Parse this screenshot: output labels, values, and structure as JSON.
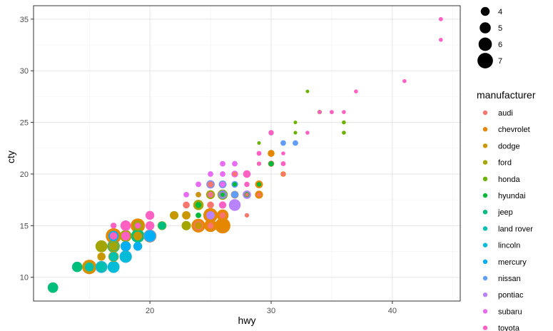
{
  "chart_data": {
    "type": "scatter",
    "title": "",
    "xlabel": "hwy",
    "ylabel": "cty",
    "xlim": [
      10.4,
      45.6
    ],
    "ylim": [
      7.7,
      36.3
    ],
    "x_ticks": [
      20,
      30,
      40
    ],
    "y_ticks": [
      10,
      15,
      20,
      25,
      30,
      35
    ],
    "grid": true,
    "size_legend": {
      "title": "",
      "placement": "right",
      "values": [
        4,
        5,
        6,
        7
      ]
    },
    "color_legend": {
      "title": "manufacturer",
      "placement": "right"
    },
    "series": [
      {
        "name": "audi",
        "color": "#F8766D",
        "points": [
          [
            29,
            18,
            1.8
          ],
          [
            29,
            21,
            2.0
          ],
          [
            31,
            20,
            2.0
          ],
          [
            30,
            21,
            2.8
          ],
          [
            26,
            16,
            2.8
          ],
          [
            26,
            18,
            3.1
          ],
          [
            25,
            18,
            1.8
          ],
          [
            28,
            18,
            1.8
          ],
          [
            28,
            16,
            2.0
          ],
          [
            27,
            20,
            2.0
          ],
          [
            25,
            19,
            2.8
          ],
          [
            25,
            15,
            2.8
          ],
          [
            25,
            17,
            3.1
          ],
          [
            23,
            17,
            3.1
          ],
          [
            24,
            15,
            4.2
          ]
        ]
      },
      {
        "name": "chevrolet",
        "color": "#E58700",
        "points": [
          [
            26,
            16,
            5.3
          ],
          [
            25,
            15,
            5.7
          ],
          [
            24,
            15,
            6.2
          ],
          [
            25,
            16,
            6.5
          ],
          [
            26,
            15,
            7.0
          ],
          [
            31,
            20,
            2.4
          ],
          [
            30,
            22,
            3.1
          ],
          [
            25,
            15,
            5.7
          ],
          [
            24,
            15,
            6.0
          ],
          [
            29,
            19,
            3.5
          ],
          [
            27,
            18,
            3.5
          ],
          [
            29,
            18,
            3.6
          ],
          [
            17,
            14,
            7.0
          ],
          [
            19,
            15,
            6.5
          ],
          [
            20,
            14,
            5.7
          ],
          [
            15,
            11,
            6.5
          ]
        ]
      },
      {
        "name": "dodge",
        "color": "#C99800",
        "points": [
          [
            24,
            18,
            2.4
          ],
          [
            24,
            17,
            3.0
          ],
          [
            22,
            16,
            3.3
          ],
          [
            22,
            16,
            3.8
          ],
          [
            24,
            15,
            3.3
          ],
          [
            23,
            16,
            3.8
          ],
          [
            19,
            14,
            3.8
          ],
          [
            17,
            13,
            4.7
          ],
          [
            12,
            9,
            4.7
          ],
          [
            17,
            13,
            5.2
          ],
          [
            15,
            11,
            5.7
          ],
          [
            16,
            12,
            3.7
          ],
          [
            19,
            14,
            3.7
          ],
          [
            18,
            13,
            4.7
          ],
          [
            17,
            12,
            4.7
          ],
          [
            20,
            14,
            5.9
          ]
        ]
      },
      {
        "name": "ford",
        "color": "#A3A500",
        "points": [
          [
            17,
            13,
            4.0
          ],
          [
            19,
            14,
            4.0
          ],
          [
            17,
            13,
            4.6
          ],
          [
            18,
            14,
            5.4
          ],
          [
            16,
            13,
            5.4
          ],
          [
            21,
            15,
            4.0
          ],
          [
            18,
            13,
            4.6
          ],
          [
            19,
            15,
            4.6
          ],
          [
            23,
            15,
            4.2
          ],
          [
            26,
            18,
            4.6
          ],
          [
            24,
            17,
            4.6
          ],
          [
            22,
            16,
            3.8
          ],
          [
            25,
            18,
            4.0
          ],
          [
            24,
            17,
            4.6
          ]
        ]
      },
      {
        "name": "honda",
        "color": "#6BB100",
        "points": [
          [
            33,
            28,
            1.6
          ],
          [
            32,
            24,
            1.6
          ],
          [
            32,
            25,
            1.6
          ],
          [
            29,
            23,
            1.6
          ],
          [
            32,
            24,
            1.6
          ],
          [
            34,
            26,
            1.8
          ],
          [
            36,
            25,
            1.8
          ],
          [
            36,
            24,
            1.8
          ],
          [
            34,
            26,
            2.0
          ]
        ]
      },
      {
        "name": "hyundai",
        "color": "#00BA38",
        "points": [
          [
            29,
            19,
            2.0
          ],
          [
            28,
            18,
            2.4
          ],
          [
            24,
            16,
            2.5
          ],
          [
            24,
            17,
            2.7
          ],
          [
            26,
            18,
            2.7
          ],
          [
            30,
            21,
            2.4
          ],
          [
            26,
            19,
            2.5
          ],
          [
            27,
            19,
            2.0
          ],
          [
            26,
            18,
            2.0
          ]
        ]
      },
      {
        "name": "jeep",
        "color": "#00BF7D",
        "points": [
          [
            14,
            11,
            4.7
          ],
          [
            19,
            14,
            4.7
          ],
          [
            21,
            15,
            3.7
          ],
          [
            12,
            9,
            4.7
          ],
          [
            17,
            13,
            5.7
          ],
          [
            19,
            14,
            6.1
          ]
        ]
      },
      {
        "name": "land rover",
        "color": "#00C0AF",
        "points": [
          [
            15,
            11,
            4.0
          ],
          [
            17,
            12,
            4.2
          ],
          [
            17,
            13,
            4.4
          ],
          [
            16,
            11,
            4.6
          ]
        ]
      },
      {
        "name": "lincoln",
        "color": "#00BCD8",
        "points": [
          [
            17,
            11,
            5.4
          ],
          [
            16,
            11,
            5.4
          ],
          [
            18,
            12,
            5.4
          ]
        ]
      },
      {
        "name": "mercury",
        "color": "#00B0F6",
        "points": [
          [
            19,
            13,
            4.0
          ],
          [
            18,
            13,
            4.6
          ],
          [
            17,
            14,
            4.6
          ],
          [
            20,
            14,
            5.0
          ]
        ]
      },
      {
        "name": "nissan",
        "color": "#619CFF",
        "points": [
          [
            31,
            23,
            2.5
          ],
          [
            32,
            23,
            2.5
          ],
          [
            27,
            19,
            3.0
          ],
          [
            26,
            19,
            3.5
          ],
          [
            25,
            19,
            3.5
          ],
          [
            27,
            18,
            3.3
          ],
          [
            26,
            18,
            3.8
          ],
          [
            20,
            14,
            5.6
          ],
          [
            18,
            12,
            5.6
          ]
        ]
      },
      {
        "name": "pontiac",
        "color": "#B983FF",
        "points": [
          [
            26,
            18,
            3.1
          ],
          [
            25,
            16,
            3.8
          ],
          [
            28,
            18,
            3.8
          ],
          [
            25,
            19,
            3.8
          ],
          [
            27,
            17,
            5.3
          ]
        ]
      },
      {
        "name": "subaru",
        "color": "#E76BF3",
        "points": [
          [
            26,
            21,
            2.5
          ],
          [
            25,
            20,
            2.5
          ],
          [
            26,
            19,
            2.5
          ],
          [
            26,
            18,
            2.5
          ],
          [
            24,
            19,
            2.5
          ],
          [
            27,
            20,
            2.5
          ],
          [
            25,
            18,
            2.5
          ],
          [
            24,
            18,
            2.5
          ],
          [
            27,
            21,
            2.5
          ],
          [
            26,
            20,
            2.5
          ],
          [
            23,
            18,
            2.5
          ]
        ]
      },
      {
        "name": "toyota",
        "color": "#FF61C3",
        "points": [
          [
            33,
            24,
            1.8
          ],
          [
            35,
            26,
            1.8
          ],
          [
            29,
            21,
            1.8
          ],
          [
            31,
            22,
            1.8
          ],
          [
            28,
            20,
            2.0
          ],
          [
            29,
            22,
            2.2
          ],
          [
            31,
            21,
            2.2
          ],
          [
            28,
            19,
            2.4
          ],
          [
            30,
            24,
            2.4
          ],
          [
            26,
            19,
            2.7
          ],
          [
            27,
            20,
            3.0
          ],
          [
            26,
            17,
            3.3
          ],
          [
            28,
            20,
            3.4
          ],
          [
            20,
            15,
            4.0
          ],
          [
            20,
            16,
            4.0
          ],
          [
            18,
            15,
            4.7
          ],
          [
            19,
            15,
            2.7
          ],
          [
            17,
            15,
            2.7
          ],
          [
            18,
            14,
            4.0
          ],
          [
            17,
            14,
            3.4
          ],
          [
            16,
            11,
            4.7
          ],
          [
            20,
            16,
            2.7
          ],
          [
            44,
            33,
            1.8
          ],
          [
            44,
            35,
            1.9
          ],
          [
            41,
            29,
            1.8
          ],
          [
            37,
            28,
            1.8
          ],
          [
            35,
            26,
            1.8
          ],
          [
            36,
            26,
            1.8
          ],
          [
            34,
            26,
            1.8
          ]
        ]
      }
    ],
    "size_mapping_note": "point size encodes displ"
  }
}
